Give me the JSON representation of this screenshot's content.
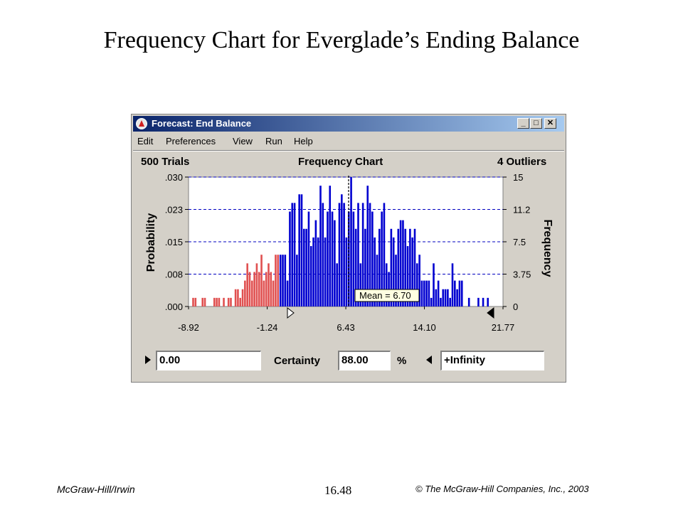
{
  "slide": {
    "title": "Frequency Chart for Everglade’s Ending Balance",
    "footer_left": "McGraw-Hill/Irwin",
    "footer_center": "16.48",
    "footer_right": "© The McGraw-Hill Companies, Inc., 2003"
  },
  "window": {
    "title": "Forecast: End Balance",
    "icon": "crystal-ball-app-icon",
    "controls": {
      "minimize": "_",
      "maximize": "□",
      "close": "✕"
    },
    "menu": [
      "Edit",
      "Preferences",
      "View",
      "Run",
      "Help"
    ]
  },
  "header": {
    "trials": "500 Trials",
    "title": "Frequency Chart",
    "outliers": "4 Outliers"
  },
  "colors": {
    "inside": "#0000d0",
    "outside": "#e05050",
    "mean_line": "#000000",
    "grid": "#0000c0"
  },
  "chart_data": {
    "type": "bar",
    "ylabel": "Probability",
    "y2label": "Frequency",
    "x_ticks": [
      "-8.92",
      "-1.24",
      "6.43",
      "14.10",
      "21.77"
    ],
    "y_ticks": [
      ".000",
      ".008",
      ".015",
      ".023",
      ".030"
    ],
    "y2_ticks": [
      "0",
      "3.75",
      "7.5",
      "11.2",
      "15"
    ],
    "ylim": [
      0,
      15
    ],
    "xlim": [
      -8.92,
      21.77
    ],
    "mean_label": "Mean = 6.70",
    "mean": 6.7,
    "certainty_cutoff": 0.0,
    "x": [
      -8.47,
      -8.24,
      -7.55,
      -7.32,
      -6.4,
      -6.17,
      -5.94,
      -5.48,
      -5.02,
      -4.79,
      -4.33,
      -4.1,
      -3.87,
      -3.64,
      -3.41,
      -3.18,
      -2.95,
      -2.72,
      -2.49,
      -2.26,
      -2.03,
      -1.8,
      -1.57,
      -1.34,
      -1.11,
      -0.88,
      -0.65,
      -0.42,
      -0.19,
      0.05,
      0.28,
      0.51,
      0.74,
      0.97,
      1.2,
      1.43,
      1.66,
      1.89,
      2.12,
      2.35,
      2.58,
      2.81,
      3.04,
      3.27,
      3.5,
      3.73,
      3.96,
      4.19,
      4.42,
      4.65,
      4.88,
      5.11,
      5.34,
      5.57,
      5.8,
      6.03,
      6.26,
      6.49,
      6.72,
      6.95,
      7.18,
      7.41,
      7.64,
      7.87,
      8.1,
      8.33,
      8.56,
      8.79,
      9.02,
      9.25,
      9.48,
      9.71,
      9.94,
      10.17,
      10.4,
      10.63,
      10.86,
      11.09,
      11.32,
      11.55,
      11.78,
      12.01,
      12.24,
      12.47,
      12.7,
      12.93,
      13.16,
      13.39,
      13.62,
      13.85,
      14.08,
      14.31,
      14.54,
      14.77,
      15.0,
      15.23,
      15.46,
      15.69,
      15.92,
      16.15,
      16.38,
      16.61,
      16.84,
      17.07,
      17.3,
      17.53,
      17.76,
      18.45,
      19.37,
      19.83,
      20.29
    ],
    "values": [
      1,
      1,
      1,
      1,
      1,
      1,
      1,
      1,
      1,
      1,
      2,
      2,
      1,
      2,
      3,
      5,
      4,
      3,
      4,
      5,
      4,
      6,
      3,
      4,
      5,
      4,
      3,
      6,
      6,
      6,
      6,
      6,
      3,
      11,
      12,
      12,
      6,
      13,
      13,
      9,
      9,
      11,
      7,
      8,
      10,
      8,
      14,
      12,
      8,
      11,
      14,
      11,
      10,
      5,
      12,
      13,
      12,
      8,
      11,
      15,
      11,
      9,
      12,
      5,
      12,
      9,
      14,
      12,
      11,
      8,
      6,
      9,
      11,
      12,
      5,
      4,
      9,
      8,
      6,
      9,
      10,
      10,
      9,
      7,
      9,
      8,
      9,
      5,
      6,
      3,
      3,
      3,
      3,
      1,
      5,
      2,
      3,
      1,
      2,
      2,
      2,
      1,
      5,
      3,
      2,
      3,
      3,
      1,
      1,
      1,
      1
    ]
  },
  "certainty": {
    "lower": "0.00",
    "label": "Certainty",
    "value": "88.00",
    "unit": "%",
    "upper": "+Infinity"
  }
}
